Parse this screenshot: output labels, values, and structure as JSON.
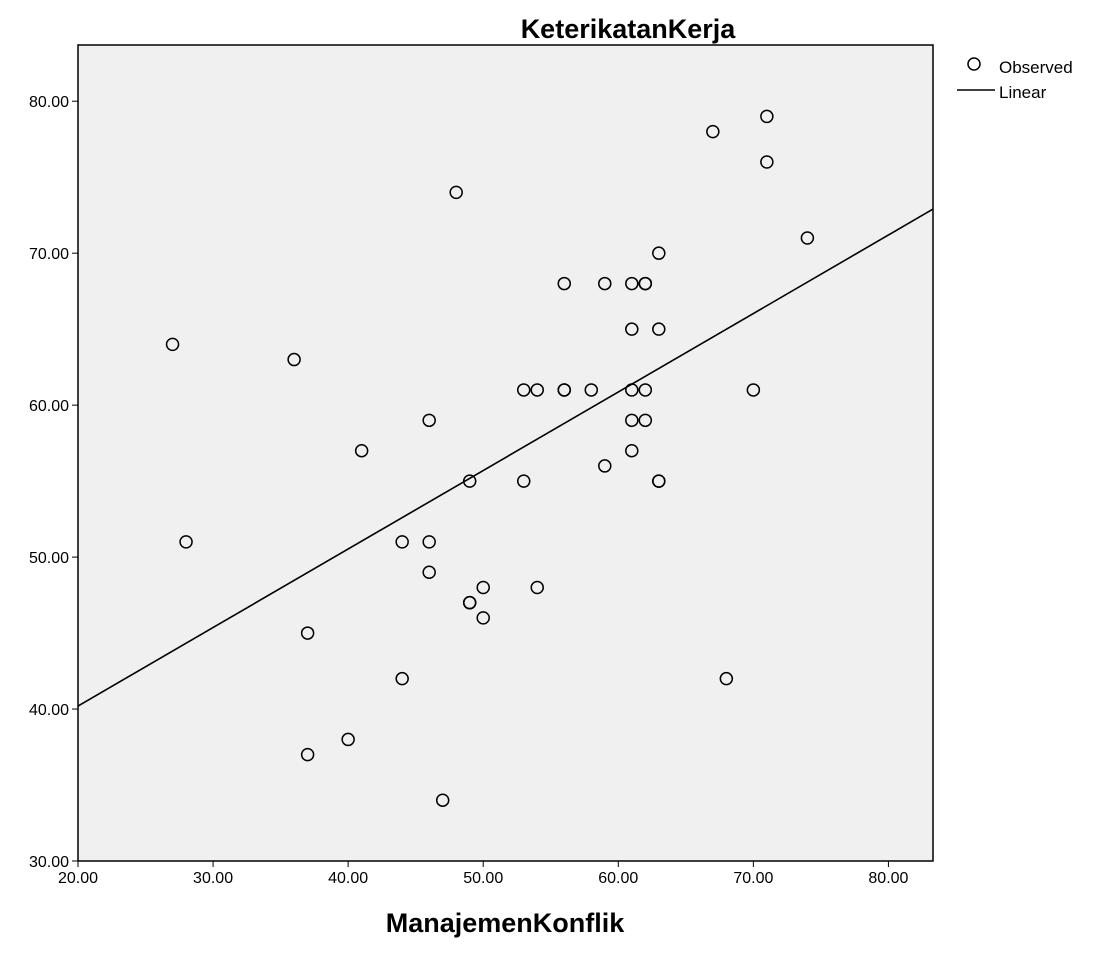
{
  "chart_data": {
    "type": "scatter",
    "title": "KeterikatanKerja",
    "xlabel": "ManajemenKonflik",
    "ylabel": "",
    "xlim": [
      20,
      83.3
    ],
    "ylim": [
      30,
      83.7
    ],
    "x_ticks": [
      "20.00",
      "30.00",
      "40.00",
      "50.00",
      "60.00",
      "70.00",
      "80.00"
    ],
    "y_ticks": [
      "30.00",
      "40.00",
      "50.00",
      "60.00",
      "70.00",
      "80.00"
    ],
    "x_tick_values": [
      20,
      30,
      40,
      50,
      60,
      70,
      80
    ],
    "y_tick_values": [
      30,
      40,
      50,
      60,
      70,
      80
    ],
    "grid": false,
    "legend_position": "top-right",
    "legend": [
      "Observed",
      "Linear"
    ],
    "series": [
      {
        "name": "Observed",
        "type": "scatter",
        "points": [
          [
            27,
            64
          ],
          [
            28,
            51
          ],
          [
            36,
            63
          ],
          [
            37,
            45
          ],
          [
            37,
            37
          ],
          [
            40,
            38
          ],
          [
            41,
            57
          ],
          [
            44,
            51
          ],
          [
            44,
            42
          ],
          [
            46,
            59
          ],
          [
            46,
            51
          ],
          [
            46,
            49
          ],
          [
            47,
            34
          ],
          [
            48,
            74
          ],
          [
            49,
            55
          ],
          [
            49,
            47
          ],
          [
            49,
            47
          ],
          [
            50,
            48
          ],
          [
            50,
            46
          ],
          [
            53,
            61
          ],
          [
            53,
            55
          ],
          [
            54,
            61
          ],
          [
            54,
            48
          ],
          [
            56,
            68
          ],
          [
            56,
            61
          ],
          [
            56,
            61
          ],
          [
            58,
            61
          ],
          [
            59,
            68
          ],
          [
            59,
            56
          ],
          [
            61,
            68
          ],
          [
            61,
            65
          ],
          [
            61,
            61
          ],
          [
            61,
            59
          ],
          [
            61,
            57
          ],
          [
            62,
            68
          ],
          [
            62,
            68
          ],
          [
            62,
            61
          ],
          [
            62,
            59
          ],
          [
            63,
            70
          ],
          [
            63,
            65
          ],
          [
            63,
            55
          ],
          [
            63,
            55
          ],
          [
            67,
            78
          ],
          [
            68,
            42
          ],
          [
            70,
            61
          ],
          [
            71,
            79
          ],
          [
            71,
            76
          ],
          [
            74,
            71
          ]
        ]
      },
      {
        "name": "Linear",
        "type": "line",
        "points": [
          [
            20,
            40.2
          ],
          [
            83.3,
            72.9
          ]
        ]
      }
    ],
    "colors": {
      "plot_background": "#f0f0f0",
      "marker_stroke": "#000000",
      "line": "#000000"
    }
  }
}
